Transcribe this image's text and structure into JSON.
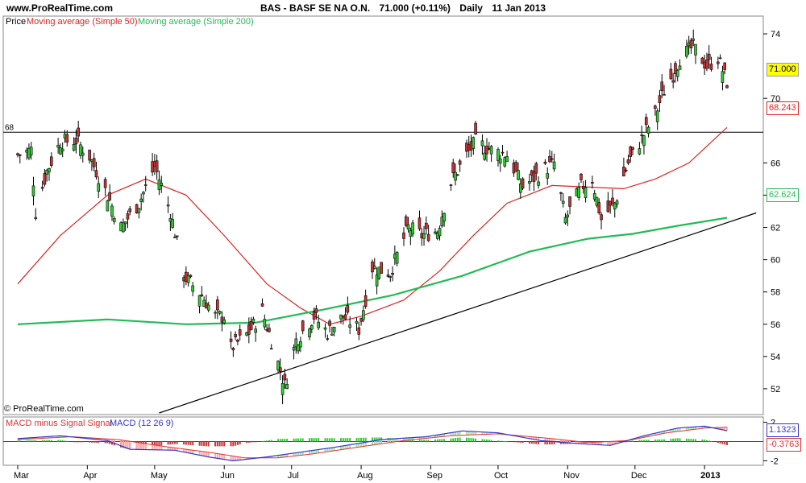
{
  "header": {
    "site": "www.ProRealTime.com",
    "symbol": "BAS - BASF SE NA O.N.",
    "quote": "71.000 (+0.11%)",
    "period": "Daily",
    "date": "11 Jan 2013"
  },
  "legend": {
    "price": "Price",
    "ma50": "Moving average (Simple 50)",
    "ma200": "Moving average (Simple 200)"
  },
  "copyright": "© ProRealTime.com",
  "colors": {
    "up": "#33cc33",
    "down": "#cc3333",
    "ma50": "#dd2222",
    "ma200": "#22bb55",
    "trendline": "#000000",
    "macd": "#3333cc",
    "signal": "#dd3333",
    "last_price_bg": "#ffff00"
  },
  "chart_data": [
    {
      "type": "candlestick",
      "title": "BAS - BASF SE NA O.N.",
      "ylim": [
        50.5,
        75
      ],
      "y_ticks": [
        52,
        54,
        56,
        58,
        60,
        62,
        64,
        66,
        70,
        74
      ],
      "x_months": [
        "Mar",
        "Apr",
        "May",
        "Jun",
        "Jul",
        "Aug",
        "Sep",
        "Oct",
        "Nov",
        "Dec",
        "2013"
      ],
      "last_price": "71.000",
      "ma50_last": "68.243",
      "ma200_last": "62.624",
      "horizontal_level": {
        "label": "68",
        "value": 67.9
      },
      "trendline": {
        "from": {
          "date": "2012-05-03",
          "value": 50.5
        },
        "to": {
          "date": "2013-01-24",
          "value": 62.9
        }
      },
      "close_path": [
        {
          "date": "2012-03-01",
          "value": 66.5
        },
        {
          "date": "2012-03-07",
          "value": 66.8
        },
        {
          "date": "2012-03-09",
          "value": 63.0
        },
        {
          "date": "2012-03-14",
          "value": 65.5
        },
        {
          "date": "2012-03-20",
          "value": 67.3
        },
        {
          "date": "2012-03-27",
          "value": 67.4
        },
        {
          "date": "2012-04-02",
          "value": 66.4
        },
        {
          "date": "2012-04-10",
          "value": 64.0
        },
        {
          "date": "2012-04-16",
          "value": 62.0
        },
        {
          "date": "2012-04-24",
          "value": 63.5
        },
        {
          "date": "2012-05-01",
          "value": 65.8
        },
        {
          "date": "2012-05-08",
          "value": 63.0
        },
        {
          "date": "2012-05-14",
          "value": 59.0
        },
        {
          "date": "2012-05-22",
          "value": 57.8
        },
        {
          "date": "2012-05-28",
          "value": 56.5
        },
        {
          "date": "2012-06-01",
          "value": 56.5
        },
        {
          "date": "2012-06-04",
          "value": 54.5
        },
        {
          "date": "2012-06-12",
          "value": 55.5
        },
        {
          "date": "2012-06-18",
          "value": 56.8
        },
        {
          "date": "2012-06-22",
          "value": 55.0
        },
        {
          "date": "2012-06-28",
          "value": 52.2
        },
        {
          "date": "2012-07-03",
          "value": 55.0
        },
        {
          "date": "2012-07-11",
          "value": 56.5
        },
        {
          "date": "2012-07-17",
          "value": 55.5
        },
        {
          "date": "2012-07-24",
          "value": 56.5
        },
        {
          "date": "2012-07-31",
          "value": 55.7
        },
        {
          "date": "2012-08-06",
          "value": 59.5
        },
        {
          "date": "2012-08-14",
          "value": 59.2
        },
        {
          "date": "2012-08-22",
          "value": 62.0
        },
        {
          "date": "2012-08-28",
          "value": 61.5
        },
        {
          "date": "2012-09-04",
          "value": 61.8
        },
        {
          "date": "2012-09-10",
          "value": 64.8
        },
        {
          "date": "2012-09-17",
          "value": 66.5
        },
        {
          "date": "2012-09-21",
          "value": 67.3
        },
        {
          "date": "2012-09-28",
          "value": 66.8
        },
        {
          "date": "2012-10-05",
          "value": 66.5
        },
        {
          "date": "2012-10-12",
          "value": 64.5
        },
        {
          "date": "2012-10-19",
          "value": 65.3
        },
        {
          "date": "2012-10-26",
          "value": 66.0
        },
        {
          "date": "2012-10-31",
          "value": 62.5
        },
        {
          "date": "2012-11-07",
          "value": 64.5
        },
        {
          "date": "2012-11-12",
          "value": 65.0
        },
        {
          "date": "2012-11-16",
          "value": 62.5
        },
        {
          "date": "2012-11-22",
          "value": 63.5
        },
        {
          "date": "2012-11-28",
          "value": 66.0
        },
        {
          "date": "2012-12-04",
          "value": 67.5
        },
        {
          "date": "2012-12-10",
          "value": 69.0
        },
        {
          "date": "2012-12-14",
          "value": 70.5
        },
        {
          "date": "2012-12-18",
          "value": 71.5
        },
        {
          "date": "2012-12-21",
          "value": 72.5
        },
        {
          "date": "2012-12-27",
          "value": 73.2
        },
        {
          "date": "2013-01-02",
          "value": 72.0
        },
        {
          "date": "2013-01-07",
          "value": 72.5
        },
        {
          "date": "2013-01-11",
          "value": 71.0
        }
      ],
      "ma50_path": [
        {
          "date": "2012-03-01",
          "value": 58.5
        },
        {
          "date": "2012-03-20",
          "value": 61.5
        },
        {
          "date": "2012-04-10",
          "value": 64.0
        },
        {
          "date": "2012-04-27",
          "value": 65.0
        },
        {
          "date": "2012-05-15",
          "value": 64.0
        },
        {
          "date": "2012-06-01",
          "value": 61.5
        },
        {
          "date": "2012-06-20",
          "value": 58.5
        },
        {
          "date": "2012-07-05",
          "value": 57.0
        },
        {
          "date": "2012-07-18",
          "value": 56.0
        },
        {
          "date": "2012-08-01",
          "value": 56.5
        },
        {
          "date": "2012-08-20",
          "value": 57.5
        },
        {
          "date": "2012-09-05",
          "value": 59.3
        },
        {
          "date": "2012-09-20",
          "value": 61.5
        },
        {
          "date": "2012-10-05",
          "value": 63.5
        },
        {
          "date": "2012-10-25",
          "value": 64.6
        },
        {
          "date": "2012-11-10",
          "value": 64.5
        },
        {
          "date": "2012-11-26",
          "value": 64.4
        },
        {
          "date": "2012-12-10",
          "value": 65.0
        },
        {
          "date": "2012-12-25",
          "value": 66.0
        },
        {
          "date": "2013-01-11",
          "value": 68.2
        }
      ],
      "ma200_path": [
        {
          "date": "2012-03-01",
          "value": 56.0
        },
        {
          "date": "2012-04-10",
          "value": 56.3
        },
        {
          "date": "2012-05-15",
          "value": 56.0
        },
        {
          "date": "2012-06-15",
          "value": 56.1
        },
        {
          "date": "2012-07-15",
          "value": 56.9
        },
        {
          "date": "2012-08-15",
          "value": 57.8
        },
        {
          "date": "2012-09-15",
          "value": 59.0
        },
        {
          "date": "2012-10-15",
          "value": 60.5
        },
        {
          "date": "2012-11-10",
          "value": 61.3
        },
        {
          "date": "2012-11-30",
          "value": 61.6
        },
        {
          "date": "2012-12-20",
          "value": 62.1
        },
        {
          "date": "2013-01-11",
          "value": 62.6
        }
      ]
    },
    {
      "type": "macd",
      "title": "MACD (12 26 9)",
      "series_labels": [
        "MACD minus Signal Signal",
        "MACD (12 26 9)"
      ],
      "ylim": [
        -2.3,
        2.3
      ],
      "y_ticks": [
        2,
        -2
      ],
      "macd_last": "1.1323",
      "histogram_last": "-0.3763",
      "macd_path": [
        {
          "date": "2012-03-01",
          "value": 0.3
        },
        {
          "date": "2012-03-20",
          "value": 0.6
        },
        {
          "date": "2012-04-10",
          "value": 0.1
        },
        {
          "date": "2012-04-20",
          "value": -0.8
        },
        {
          "date": "2012-05-10",
          "value": -0.9
        },
        {
          "date": "2012-05-25",
          "value": -1.6
        },
        {
          "date": "2012-06-05",
          "value": -2.0
        },
        {
          "date": "2012-06-20",
          "value": -1.6
        },
        {
          "date": "2012-07-05",
          "value": -1.1
        },
        {
          "date": "2012-07-20",
          "value": -0.6
        },
        {
          "date": "2012-08-10",
          "value": 0.2
        },
        {
          "date": "2012-08-30",
          "value": 0.5
        },
        {
          "date": "2012-09-15",
          "value": 1.1
        },
        {
          "date": "2012-10-01",
          "value": 0.9
        },
        {
          "date": "2012-10-20",
          "value": 0.1
        },
        {
          "date": "2012-11-05",
          "value": -0.2
        },
        {
          "date": "2012-11-20",
          "value": -0.4
        },
        {
          "date": "2012-12-05",
          "value": 0.6
        },
        {
          "date": "2012-12-20",
          "value": 1.4
        },
        {
          "date": "2013-01-01",
          "value": 1.6
        },
        {
          "date": "2013-01-11",
          "value": 1.13
        }
      ],
      "signal_path": [
        {
          "date": "2012-03-01",
          "value": 0.2
        },
        {
          "date": "2012-03-25",
          "value": 0.5
        },
        {
          "date": "2012-04-15",
          "value": 0.2
        },
        {
          "date": "2012-05-05",
          "value": -0.5
        },
        {
          "date": "2012-05-25",
          "value": -1.1
        },
        {
          "date": "2012-06-10",
          "value": -1.7
        },
        {
          "date": "2012-06-25",
          "value": -1.7
        },
        {
          "date": "2012-07-10",
          "value": -1.3
        },
        {
          "date": "2012-07-30",
          "value": -0.6
        },
        {
          "date": "2012-08-20",
          "value": 0.1
        },
        {
          "date": "2012-09-10",
          "value": 0.6
        },
        {
          "date": "2012-10-01",
          "value": 0.8
        },
        {
          "date": "2012-10-25",
          "value": 0.3
        },
        {
          "date": "2012-11-10",
          "value": -0.1
        },
        {
          "date": "2012-11-28",
          "value": 0.1
        },
        {
          "date": "2012-12-15",
          "value": 0.9
        },
        {
          "date": "2013-01-01",
          "value": 1.4
        },
        {
          "date": "2013-01-11",
          "value": 1.5
        }
      ]
    }
  ]
}
